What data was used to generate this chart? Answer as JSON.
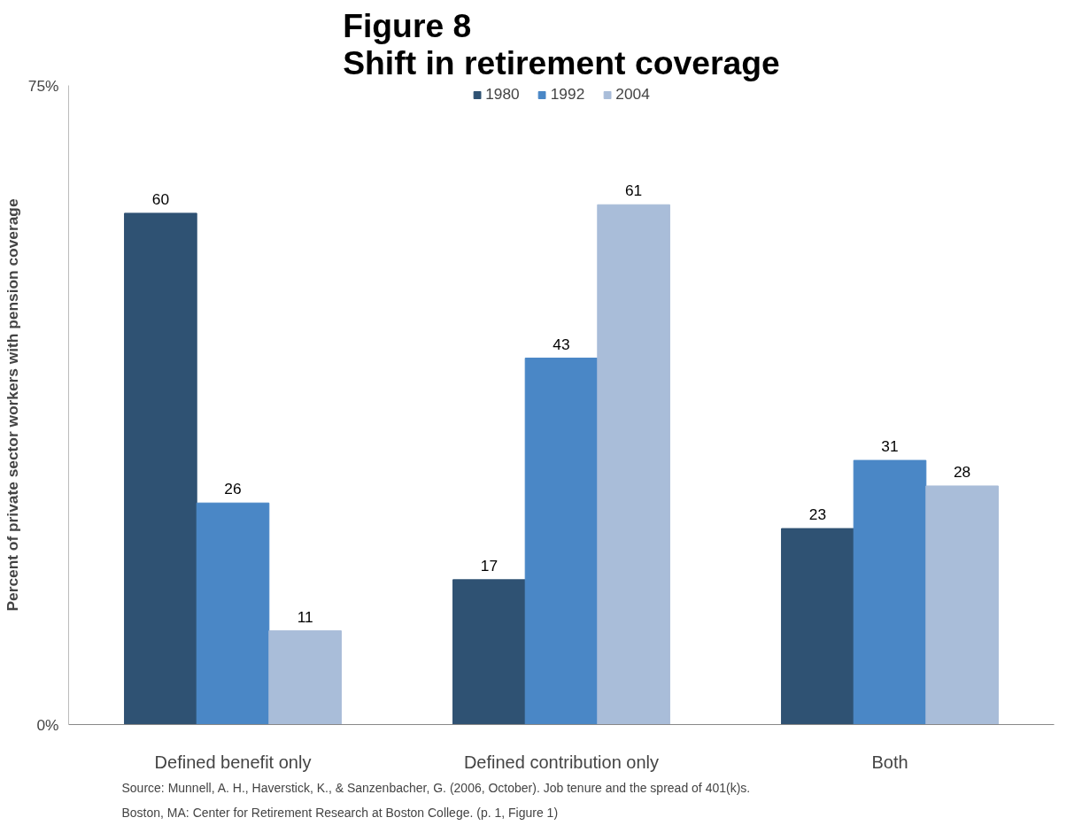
{
  "chart_data": {
    "type": "bar",
    "title": "Figure 8\nShift in retirement coverage",
    "ylabel": "Percent of private sector workers with pension coverage",
    "categories": [
      "Defined benefit only",
      "Defined contribution only",
      "Both"
    ],
    "series": [
      {
        "name": "1980",
        "color": "#2f5273",
        "values": [
          60,
          17,
          23
        ]
      },
      {
        "name": "1992",
        "color": "#4a87c6",
        "values": [
          26,
          43,
          31
        ]
      },
      {
        "name": "2004",
        "color": "#a9bdd9",
        "values": [
          11,
          61,
          28
        ]
      }
    ],
    "ylim": [
      0,
      75
    ],
    "yticks": [
      {
        "value": 0,
        "label": "0%"
      },
      {
        "value": 75,
        "label": "75%"
      }
    ],
    "data_labels": true,
    "legend": "top",
    "annotations": [
      "Source: Munnell, A. H., Haverstick, K., & Sanzenbacher, G. (2006, October). Job tenure and the spread of 401(k)s.",
      "Boston, MA: Center for Retirement Research at Boston College. (p. 1, Figure 1)"
    ]
  }
}
